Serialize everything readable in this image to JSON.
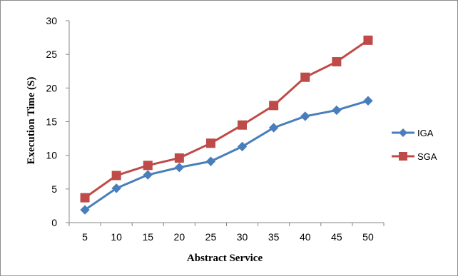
{
  "chart_data": {
    "type": "line",
    "title": "",
    "xlabel": "Abstract Service",
    "ylabel": "Execution Time (S)",
    "categories": [
      "5",
      "10",
      "15",
      "20",
      "25",
      "30",
      "35",
      "40",
      "45",
      "50"
    ],
    "ylim": [
      0,
      30
    ],
    "yticks": [
      "0",
      "5",
      "10",
      "15",
      "20",
      "25",
      "30"
    ],
    "grid": false,
    "legend_position": "right",
    "series": [
      {
        "name": "IGA",
        "color": "#4a7ebb",
        "marker": "diamond",
        "values": [
          1.9,
          5.1,
          7.1,
          8.2,
          9.1,
          11.3,
          14.1,
          15.8,
          16.7,
          18.1
        ]
      },
      {
        "name": "SGA",
        "color": "#be4b48",
        "marker": "square",
        "values": [
          3.7,
          7.0,
          8.5,
          9.6,
          11.8,
          14.5,
          17.4,
          21.6,
          23.9,
          27.1
        ]
      }
    ]
  }
}
